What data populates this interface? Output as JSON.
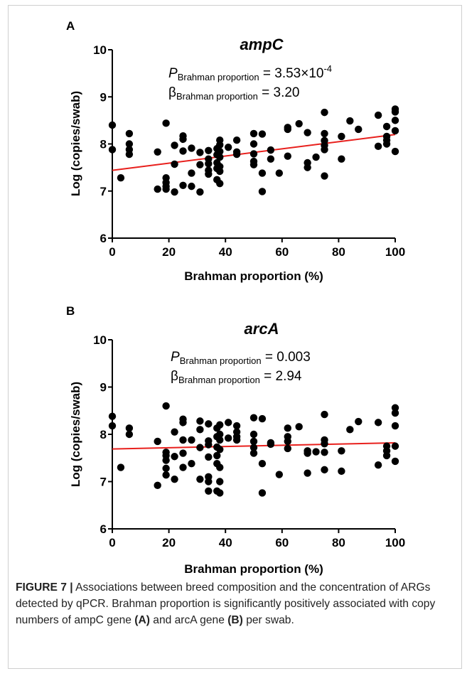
{
  "figure": {
    "caption_label": "FIGURE 7 |",
    "caption_text_1": " Associations between breed composition and the concentration of ARGs detected by qPCR. Brahman proportion is significantly positively associated with copy numbers of ampC gene ",
    "caption_ref_a": "(A)",
    "caption_text_2": " and arcA gene ",
    "caption_ref_b": "(B)",
    "caption_text_3": " per swab."
  },
  "colors": {
    "points": "#000000",
    "fit_line": "#e8201d",
    "axis": "#000000"
  },
  "chart_data": [
    {
      "type": "scatter",
      "panel_label": "A",
      "title": "ampC",
      "xlabel": "Brahman proportion (%)",
      "ylabel": "Log (copies/swab)",
      "xlim": [
        0,
        100
      ],
      "ylim": [
        6,
        10
      ],
      "xticks": [
        0,
        20,
        40,
        60,
        80,
        100
      ],
      "yticks": [
        6,
        7,
        8,
        9,
        10
      ],
      "grid": false,
      "stats": {
        "p_symbol": "P",
        "p_sub": "Brahman proportion",
        "p_eq": " = 3.53×10",
        "p_exp": "-4",
        "beta_symbol": "β",
        "beta_sub": "Brahman proportion",
        "beta_eq": " = 3.20"
      },
      "regression": {
        "x": [
          0,
          100
        ],
        "y": [
          7.44,
          8.2
        ]
      },
      "points": [
        [
          0,
          8.4
        ],
        [
          0,
          7.88
        ],
        [
          3,
          7.28
        ],
        [
          6,
          8.22
        ],
        [
          6,
          8.0
        ],
        [
          6,
          7.88
        ],
        [
          6,
          7.78
        ],
        [
          16,
          7.83
        ],
        [
          16,
          7.04
        ],
        [
          19,
          8.44
        ],
        [
          19,
          7.28
        ],
        [
          19,
          7.18
        ],
        [
          19,
          7.1
        ],
        [
          19,
          7.04
        ],
        [
          22,
          7.97
        ],
        [
          22,
          7.57
        ],
        [
          22,
          6.98
        ],
        [
          25,
          8.17
        ],
        [
          25,
          8.1
        ],
        [
          25,
          7.85
        ],
        [
          25,
          7.12
        ],
        [
          28,
          7.91
        ],
        [
          28,
          7.38
        ],
        [
          28,
          7.1
        ],
        [
          31,
          7.82
        ],
        [
          31,
          7.56
        ],
        [
          31,
          6.98
        ],
        [
          34,
          7.86
        ],
        [
          34,
          7.68
        ],
        [
          34,
          7.58
        ],
        [
          34,
          7.44
        ],
        [
          34,
          7.36
        ],
        [
          37,
          7.9
        ],
        [
          37,
          7.77
        ],
        [
          37,
          7.6
        ],
        [
          37,
          7.48
        ],
        [
          37,
          7.24
        ],
        [
          38,
          8.08
        ],
        [
          38,
          7.98
        ],
        [
          38,
          7.84
        ],
        [
          38,
          7.72
        ],
        [
          38,
          7.52
        ],
        [
          38,
          7.42
        ],
        [
          38,
          7.16
        ],
        [
          41,
          7.93
        ],
        [
          44,
          8.08
        ],
        [
          44,
          7.83
        ],
        [
          44,
          7.78
        ],
        [
          50,
          8.22
        ],
        [
          50,
          8.0
        ],
        [
          50,
          7.79
        ],
        [
          50,
          7.63
        ],
        [
          50,
          7.56
        ],
        [
          53,
          8.21
        ],
        [
          53,
          7.38
        ],
        [
          53,
          6.99
        ],
        [
          56,
          7.87
        ],
        [
          56,
          7.68
        ],
        [
          59,
          7.38
        ],
        [
          62,
          8.35
        ],
        [
          62,
          8.31
        ],
        [
          62,
          7.74
        ],
        [
          66,
          8.43
        ],
        [
          69,
          8.24
        ],
        [
          69,
          7.6
        ],
        [
          69,
          7.5
        ],
        [
          72,
          7.72
        ],
        [
          75,
          8.67
        ],
        [
          75,
          8.22
        ],
        [
          75,
          8.07
        ],
        [
          75,
          7.97
        ],
        [
          75,
          7.88
        ],
        [
          75,
          7.32
        ],
        [
          81,
          8.16
        ],
        [
          81,
          7.68
        ],
        [
          84,
          8.49
        ],
        [
          87,
          8.31
        ],
        [
          94,
          8.61
        ],
        [
          94,
          7.95
        ],
        [
          97,
          8.37
        ],
        [
          97,
          8.16
        ],
        [
          97,
          8.08
        ],
        [
          97,
          8.0
        ],
        [
          100,
          8.74
        ],
        [
          100,
          8.68
        ],
        [
          100,
          8.5
        ],
        [
          100,
          8.28
        ],
        [
          100,
          7.84
        ]
      ]
    },
    {
      "type": "scatter",
      "panel_label": "B",
      "title": "arcA",
      "xlabel": "Brahman proportion (%)",
      "ylabel": "Log (copies/swab)",
      "xlim": [
        0,
        100
      ],
      "ylim": [
        6,
        10
      ],
      "xticks": [
        0,
        20,
        40,
        60,
        80,
        100
      ],
      "yticks": [
        6,
        7,
        8,
        9,
        10
      ],
      "grid": false,
      "stats": {
        "p_symbol": "P",
        "p_sub": "Brahman proportion",
        "p_eq": " = 0.003",
        "p_exp": "",
        "beta_symbol": "β",
        "beta_sub": "Brahman proportion",
        "beta_eq": " = 2.94"
      },
      "regression": {
        "x": [
          0,
          100
        ],
        "y": [
          7.69,
          7.82
        ]
      },
      "points": [
        [
          0,
          8.38
        ],
        [
          0,
          8.18
        ],
        [
          3,
          7.3
        ],
        [
          6,
          8.13
        ],
        [
          6,
          8.0
        ],
        [
          16,
          7.85
        ],
        [
          16,
          6.92
        ],
        [
          19,
          8.6
        ],
        [
          19,
          7.62
        ],
        [
          19,
          7.55
        ],
        [
          19,
          7.45
        ],
        [
          19,
          7.28
        ],
        [
          19,
          7.14
        ],
        [
          22,
          8.05
        ],
        [
          22,
          7.53
        ],
        [
          22,
          7.05
        ],
        [
          25,
          8.32
        ],
        [
          25,
          8.25
        ],
        [
          25,
          7.88
        ],
        [
          25,
          7.6
        ],
        [
          25,
          7.3
        ],
        [
          28,
          7.88
        ],
        [
          28,
          7.38
        ],
        [
          31,
          8.28
        ],
        [
          31,
          8.1
        ],
        [
          31,
          7.72
        ],
        [
          31,
          7.05
        ],
        [
          34,
          8.22
        ],
        [
          34,
          7.86
        ],
        [
          34,
          7.78
        ],
        [
          34,
          7.52
        ],
        [
          34,
          7.1
        ],
        [
          34,
          7.0
        ],
        [
          34,
          6.8
        ],
        [
          37,
          8.13
        ],
        [
          37,
          7.95
        ],
        [
          37,
          7.73
        ],
        [
          37,
          7.55
        ],
        [
          37,
          7.38
        ],
        [
          37,
          6.8
        ],
        [
          38,
          8.2
        ],
        [
          38,
          8.0
        ],
        [
          38,
          7.88
        ],
        [
          38,
          7.68
        ],
        [
          38,
          7.3
        ],
        [
          38,
          7.0
        ],
        [
          38,
          6.76
        ],
        [
          41,
          8.25
        ],
        [
          41,
          7.92
        ],
        [
          44,
          8.18
        ],
        [
          44,
          8.05
        ],
        [
          44,
          7.95
        ],
        [
          44,
          7.88
        ],
        [
          50,
          8.35
        ],
        [
          50,
          8.0
        ],
        [
          50,
          7.85
        ],
        [
          50,
          7.72
        ],
        [
          50,
          7.6
        ],
        [
          53,
          8.33
        ],
        [
          53,
          7.38
        ],
        [
          53,
          6.76
        ],
        [
          56,
          7.82
        ],
        [
          56,
          7.79
        ],
        [
          59,
          7.15
        ],
        [
          62,
          8.13
        ],
        [
          62,
          7.95
        ],
        [
          62,
          7.85
        ],
        [
          62,
          7.7
        ],
        [
          66,
          8.16
        ],
        [
          69,
          7.65
        ],
        [
          69,
          7.6
        ],
        [
          69,
          7.18
        ],
        [
          72,
          7.63
        ],
        [
          75,
          8.42
        ],
        [
          75,
          7.88
        ],
        [
          75,
          7.8
        ],
        [
          75,
          7.62
        ],
        [
          75,
          7.25
        ],
        [
          81,
          7.65
        ],
        [
          81,
          7.22
        ],
        [
          84,
          8.1
        ],
        [
          87,
          8.27
        ],
        [
          94,
          8.25
        ],
        [
          94,
          7.35
        ],
        [
          97,
          7.75
        ],
        [
          97,
          7.65
        ],
        [
          97,
          7.55
        ],
        [
          100,
          8.56
        ],
        [
          100,
          8.45
        ],
        [
          100,
          8.18
        ],
        [
          100,
          7.75
        ],
        [
          100,
          7.43
        ]
      ]
    }
  ]
}
